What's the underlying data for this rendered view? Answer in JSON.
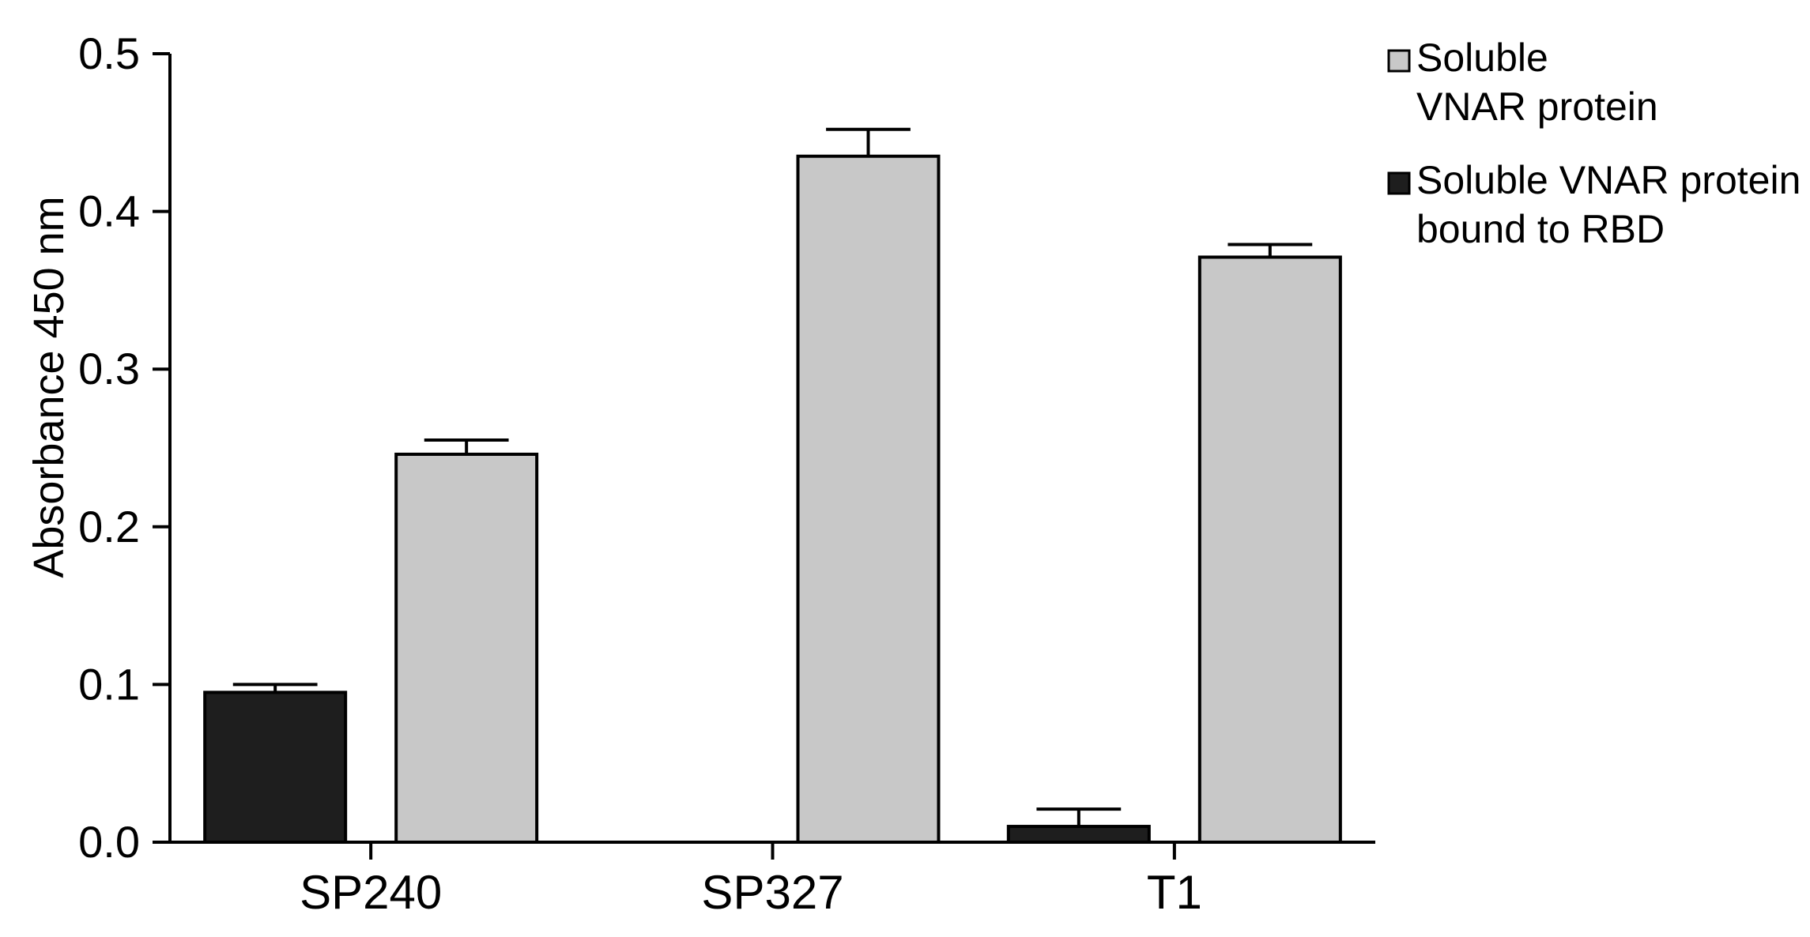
{
  "chart_data": {
    "type": "bar",
    "categories": [
      "SP240",
      "SP327",
      "T1"
    ],
    "ylabel": "Absorbance 450 nm",
    "xlabel": "",
    "ylim": [
      0,
      0.5
    ],
    "yticks": [
      {
        "value": 0.0,
        "label": "0.0"
      },
      {
        "value": 0.1,
        "label": "0.1"
      },
      {
        "value": 0.2,
        "label": "0.2"
      },
      {
        "value": 0.3,
        "label": "0.3"
      },
      {
        "value": 0.4,
        "label": "0.4"
      },
      {
        "value": 0.5,
        "label": "0.5"
      }
    ],
    "grid": false,
    "legend_position": "top-right",
    "series": [
      {
        "name": "Soluble VNAR protein bound to RBD",
        "legend_lines": [
          "Soluble VNAR protein",
          "bound to RBD"
        ],
        "color": "#1e1e1e",
        "values": [
          0.095,
          null,
          0.01
        ],
        "errors": [
          0.005,
          null,
          0.011
        ]
      },
      {
        "name": "Soluble VNAR protein",
        "legend_lines": [
          "Soluble",
          "VNAR protein"
        ],
        "color": "#c8c8c8",
        "values": [
          0.246,
          0.435,
          0.371
        ],
        "errors": [
          0.009,
          0.017,
          0.008
        ]
      }
    ]
  }
}
